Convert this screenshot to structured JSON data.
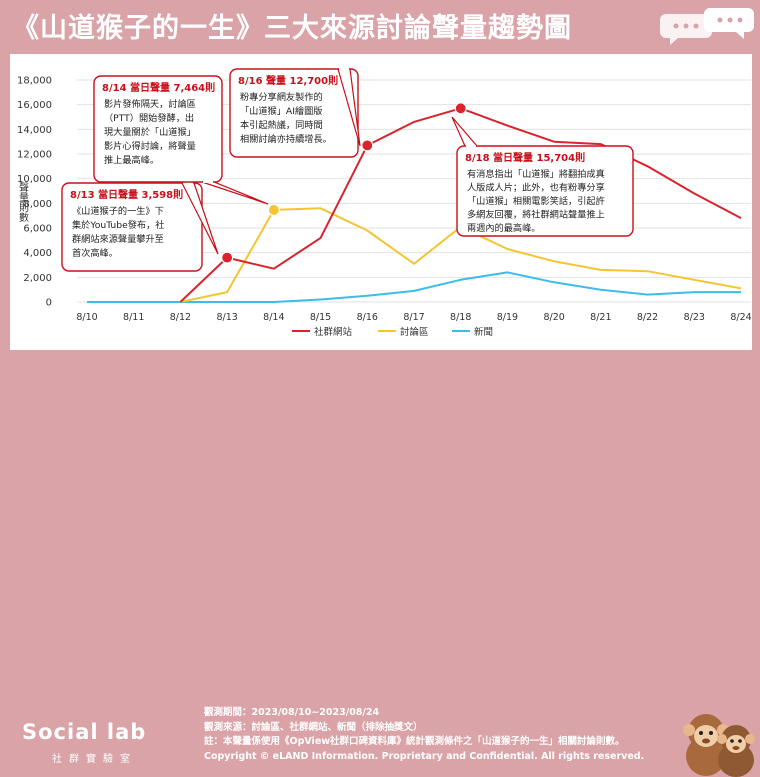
{
  "header": {
    "title": "《山道猴子的一生》三大來源討論聲量趨勢圖"
  },
  "footer": {
    "logo_text": "Social lab",
    "logo_sub": "社群實驗室",
    "notes": [
      "觀測期間：2023/08/10~2023/08/24",
      "觀測來源：討論區、社群網站、新聞（排除抽獎文）",
      "註：本聲量係使用《OpView社群口碑資料庫》統計觀測條件之「山道猴子的一生」相關討論則數。",
      "Copyright © eLAND Information. Proprietary and Confidential. All rights reserved."
    ]
  },
  "chart_data": {
    "type": "line",
    "title": "《山道猴子的一生》三大來源討論聲量趨勢圖",
    "ylabel": "聲量則數",
    "xlabel": "",
    "ylim": [
      0,
      18000
    ],
    "yticks": [
      "0",
      "2,000",
      "4,000",
      "6,000",
      "8,000",
      "10,000",
      "12,000",
      "14,000",
      "16,000",
      "18,000"
    ],
    "categories": [
      "8/10",
      "8/11",
      "8/12",
      "8/13",
      "8/14",
      "8/15",
      "8/16",
      "8/17",
      "8/18",
      "8/19",
      "8/20",
      "8/21",
      "8/22",
      "8/23",
      "8/24"
    ],
    "grid": true,
    "legend_position": "bottom",
    "series": [
      {
        "name": "社群網站",
        "color": "#d7242d",
        "values": [
          null,
          null,
          0,
          3598,
          2700,
          5200,
          12700,
          14600,
          15704,
          14300,
          13000,
          12800,
          11000,
          8800,
          6800
        ]
      },
      {
        "name": "討論區",
        "color": "#f5c531",
        "values": [
          null,
          null,
          0,
          800,
          7464,
          7600,
          5800,
          3100,
          6100,
          4300,
          3300,
          2600,
          2500,
          1800,
          1100
        ]
      },
      {
        "name": "新聞",
        "color": "#3cbde8",
        "values": [
          0,
          0,
          0,
          0,
          0,
          200,
          500,
          900,
          1800,
          2400,
          1600,
          1000,
          600,
          800,
          800
        ]
      }
    ],
    "annotations": [
      {
        "title": "8/13 當日聲量 3,598則",
        "lines": [
          "《山道猴子的一生》下",
          "集於YouTube發布，社",
          "群網站來源聲量攀升至",
          "首次高峰。"
        ]
      },
      {
        "title": "8/14 當日聲量 7,464則",
        "lines": [
          "影片發佈隔天，討論區",
          "（PTT）開始發酵，出",
          "現大量關於「山道猴」",
          "影片心得討論，將聲量",
          "推上最高峰。"
        ]
      },
      {
        "title": "8/16 聲量 12,700則",
        "lines": [
          "粉專分享網友製作的",
          "「山道猴」AI繪圖版",
          "本引起熱議，同時間",
          "相關討論亦持續增長。"
        ]
      },
      {
        "title": "8/18 當日聲量 15,704則",
        "lines": [
          "有消息指出「山道猴」將翻拍成真",
          "人版成人片；此外，也有粉專分享",
          "「山道猴」相關電影笑話，引起許",
          "多網友回覆，將社群網站聲量推上",
          "兩週內的最高峰。"
        ]
      }
    ]
  }
}
